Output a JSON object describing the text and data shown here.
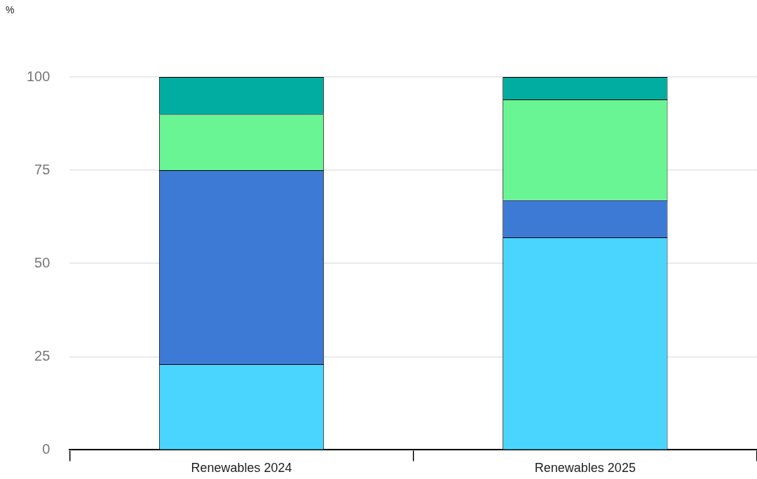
{
  "chart_data": {
    "type": "bar",
    "annotations": [
      "%"
    ],
    "categories": [
      "Renewables 2024",
      "Renewables 2025"
    ],
    "stacked": true,
    "ylim": [
      0,
      100
    ],
    "yticks": [
      0,
      25,
      50,
      75,
      100
    ],
    "grid": "y",
    "series": [
      {
        "color": "#4ad5ff",
        "values": [
          23,
          57
        ]
      },
      {
        "color": "#3d7ad5",
        "values": [
          52,
          10
        ]
      },
      {
        "color": "#69f593",
        "values": [
          15,
          27
        ]
      },
      {
        "color": "#00ada0",
        "values": [
          10,
          6
        ]
      }
    ]
  }
}
